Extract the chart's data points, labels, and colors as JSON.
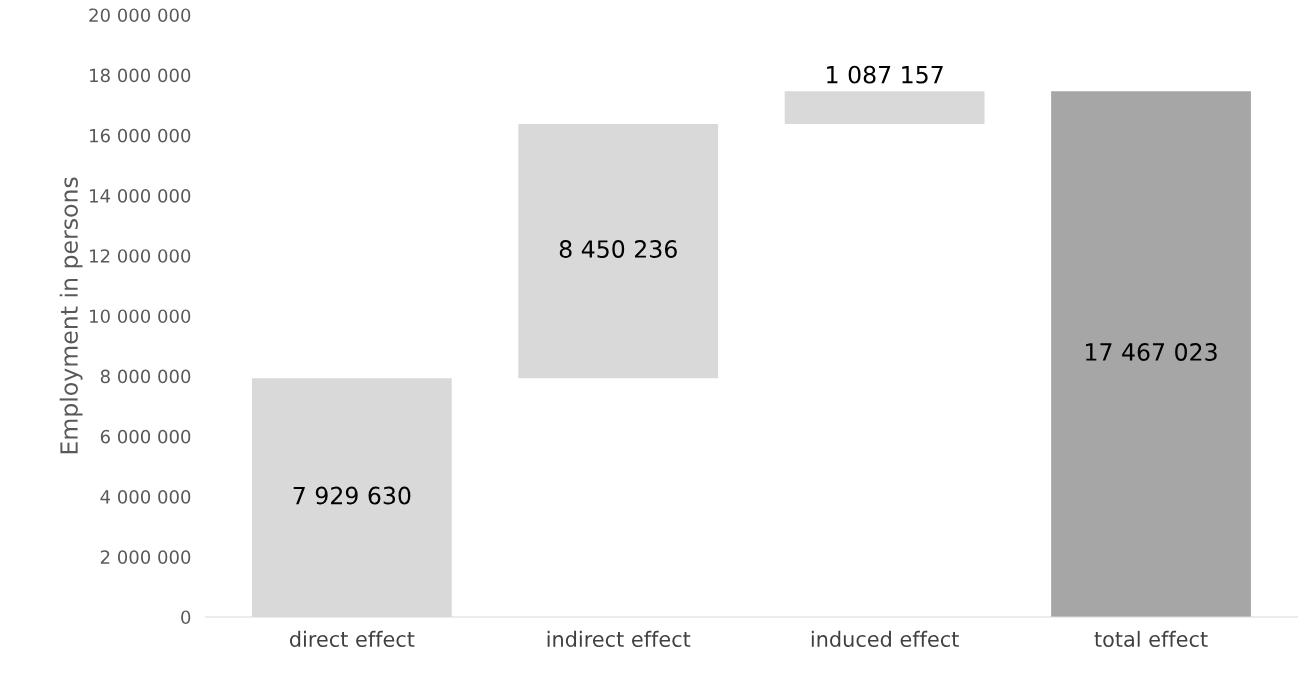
{
  "chart_data": {
    "type": "bar",
    "ylabel": "Employment in persons",
    "categories": [
      "direct effect",
      "indirect effect",
      "induced effect",
      "total effect"
    ],
    "values": [
      7929630,
      8450236,
      1087157,
      17467023
    ],
    "base": [
      0,
      7929630,
      16379866,
      0
    ],
    "colors": [
      "#d9d9d9",
      "#d9d9d9",
      "#d9d9d9",
      "#a6a6a6"
    ],
    "value_labels": [
      "7 929 630",
      "8 450 236",
      "1 087 157",
      "17 467 023"
    ],
    "ylim": [
      0,
      20000000
    ],
    "yticks": [
      {
        "value": 0,
        "label": "0"
      },
      {
        "value": 2000000,
        "label": "2 000 000"
      },
      {
        "value": 4000000,
        "label": "4 000 000"
      },
      {
        "value": 6000000,
        "label": "6 000 000"
      },
      {
        "value": 8000000,
        "label": "8 000 000"
      },
      {
        "value": 10000000,
        "label": "10 000 000"
      },
      {
        "value": 12000000,
        "label": "12 000 000"
      },
      {
        "value": 14000000,
        "label": "14 000 000"
      },
      {
        "value": 16000000,
        "label": "16 000 000"
      },
      {
        "value": 18000000,
        "label": "18 000 000"
      },
      {
        "value": 20000000,
        "label": "20 000 000"
      }
    ],
    "grid": false
  }
}
